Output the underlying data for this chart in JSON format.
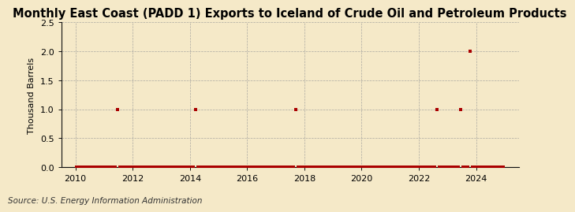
{
  "title": "Monthly East Coast (PADD 1) Exports to Iceland of Crude Oil and Petroleum Products",
  "ylabel": "Thousand Barrels",
  "source": "Source: U.S. Energy Information Administration",
  "xlim": [
    2009.5,
    2025.5
  ],
  "ylim": [
    0,
    2.5
  ],
  "yticks": [
    0.0,
    0.5,
    1.0,
    1.5,
    2.0,
    2.5
  ],
  "xticks": [
    2010,
    2012,
    2014,
    2016,
    2018,
    2020,
    2022,
    2024
  ],
  "background_color": "#f5e9c8",
  "plot_bg_color": "#f5e9c8",
  "grid_color": "#999999",
  "marker_color": "#aa0000",
  "line_color": "#111111",
  "spine_color": "#111111",
  "title_fontsize": 10.5,
  "tick_fontsize": 8,
  "ylabel_fontsize": 8,
  "source_fontsize": 7.5,
  "data_points": [
    {
      "year": 2010,
      "month": 1,
      "value": 0
    },
    {
      "year": 2010,
      "month": 2,
      "value": 0
    },
    {
      "year": 2010,
      "month": 3,
      "value": 0
    },
    {
      "year": 2010,
      "month": 4,
      "value": 0
    },
    {
      "year": 2010,
      "month": 5,
      "value": 0
    },
    {
      "year": 2010,
      "month": 6,
      "value": 0
    },
    {
      "year": 2010,
      "month": 7,
      "value": 0
    },
    {
      "year": 2010,
      "month": 8,
      "value": 0
    },
    {
      "year": 2010,
      "month": 9,
      "value": 0
    },
    {
      "year": 2010,
      "month": 10,
      "value": 0
    },
    {
      "year": 2010,
      "month": 11,
      "value": 0
    },
    {
      "year": 2010,
      "month": 12,
      "value": 0
    },
    {
      "year": 2011,
      "month": 1,
      "value": 0
    },
    {
      "year": 2011,
      "month": 2,
      "value": 0
    },
    {
      "year": 2011,
      "month": 3,
      "value": 0
    },
    {
      "year": 2011,
      "month": 4,
      "value": 0
    },
    {
      "year": 2011,
      "month": 5,
      "value": 0
    },
    {
      "year": 2011,
      "month": 6,
      "value": 1.0
    },
    {
      "year": 2011,
      "month": 7,
      "value": 0
    },
    {
      "year": 2011,
      "month": 8,
      "value": 0
    },
    {
      "year": 2011,
      "month": 9,
      "value": 0
    },
    {
      "year": 2011,
      "month": 10,
      "value": 0
    },
    {
      "year": 2011,
      "month": 11,
      "value": 0
    },
    {
      "year": 2011,
      "month": 12,
      "value": 0
    },
    {
      "year": 2012,
      "month": 1,
      "value": 0
    },
    {
      "year": 2012,
      "month": 2,
      "value": 0
    },
    {
      "year": 2012,
      "month": 3,
      "value": 0
    },
    {
      "year": 2012,
      "month": 4,
      "value": 0
    },
    {
      "year": 2012,
      "month": 5,
      "value": 0
    },
    {
      "year": 2012,
      "month": 6,
      "value": 0
    },
    {
      "year": 2012,
      "month": 7,
      "value": 0
    },
    {
      "year": 2012,
      "month": 8,
      "value": 0
    },
    {
      "year": 2012,
      "month": 9,
      "value": 0
    },
    {
      "year": 2012,
      "month": 10,
      "value": 0
    },
    {
      "year": 2012,
      "month": 11,
      "value": 0
    },
    {
      "year": 2012,
      "month": 12,
      "value": 0
    },
    {
      "year": 2013,
      "month": 1,
      "value": 0
    },
    {
      "year": 2013,
      "month": 2,
      "value": 0
    },
    {
      "year": 2013,
      "month": 3,
      "value": 0
    },
    {
      "year": 2013,
      "month": 4,
      "value": 0
    },
    {
      "year": 2013,
      "month": 5,
      "value": 0
    },
    {
      "year": 2013,
      "month": 6,
      "value": 0
    },
    {
      "year": 2013,
      "month": 7,
      "value": 0
    },
    {
      "year": 2013,
      "month": 8,
      "value": 0
    },
    {
      "year": 2013,
      "month": 9,
      "value": 0
    },
    {
      "year": 2013,
      "month": 10,
      "value": 0
    },
    {
      "year": 2013,
      "month": 11,
      "value": 0
    },
    {
      "year": 2013,
      "month": 12,
      "value": 0
    },
    {
      "year": 2014,
      "month": 1,
      "value": 0
    },
    {
      "year": 2014,
      "month": 2,
      "value": 0
    },
    {
      "year": 2014,
      "month": 3,
      "value": 1.0
    },
    {
      "year": 2014,
      "month": 4,
      "value": 0
    },
    {
      "year": 2014,
      "month": 5,
      "value": 0
    },
    {
      "year": 2014,
      "month": 6,
      "value": 0
    },
    {
      "year": 2014,
      "month": 7,
      "value": 0
    },
    {
      "year": 2014,
      "month": 8,
      "value": 0
    },
    {
      "year": 2014,
      "month": 9,
      "value": 0
    },
    {
      "year": 2014,
      "month": 10,
      "value": 0
    },
    {
      "year": 2014,
      "month": 11,
      "value": 0
    },
    {
      "year": 2014,
      "month": 12,
      "value": 0
    },
    {
      "year": 2015,
      "month": 1,
      "value": 0
    },
    {
      "year": 2015,
      "month": 2,
      "value": 0
    },
    {
      "year": 2015,
      "month": 3,
      "value": 0
    },
    {
      "year": 2015,
      "month": 4,
      "value": 0
    },
    {
      "year": 2015,
      "month": 5,
      "value": 0
    },
    {
      "year": 2015,
      "month": 6,
      "value": 0
    },
    {
      "year": 2015,
      "month": 7,
      "value": 0
    },
    {
      "year": 2015,
      "month": 8,
      "value": 0
    },
    {
      "year": 2015,
      "month": 9,
      "value": 0
    },
    {
      "year": 2015,
      "month": 10,
      "value": 0
    },
    {
      "year": 2015,
      "month": 11,
      "value": 0
    },
    {
      "year": 2015,
      "month": 12,
      "value": 0
    },
    {
      "year": 2016,
      "month": 1,
      "value": 0
    },
    {
      "year": 2016,
      "month": 2,
      "value": 0
    },
    {
      "year": 2016,
      "month": 3,
      "value": 0
    },
    {
      "year": 2016,
      "month": 4,
      "value": 0
    },
    {
      "year": 2016,
      "month": 5,
      "value": 0
    },
    {
      "year": 2016,
      "month": 6,
      "value": 0
    },
    {
      "year": 2016,
      "month": 7,
      "value": 0
    },
    {
      "year": 2016,
      "month": 8,
      "value": 0
    },
    {
      "year": 2016,
      "month": 9,
      "value": 0
    },
    {
      "year": 2016,
      "month": 10,
      "value": 0
    },
    {
      "year": 2016,
      "month": 11,
      "value": 0
    },
    {
      "year": 2016,
      "month": 12,
      "value": 0
    },
    {
      "year": 2017,
      "month": 1,
      "value": 0
    },
    {
      "year": 2017,
      "month": 2,
      "value": 0
    },
    {
      "year": 2017,
      "month": 3,
      "value": 0
    },
    {
      "year": 2017,
      "month": 4,
      "value": 0
    },
    {
      "year": 2017,
      "month": 5,
      "value": 0
    },
    {
      "year": 2017,
      "month": 6,
      "value": 0
    },
    {
      "year": 2017,
      "month": 7,
      "value": 0
    },
    {
      "year": 2017,
      "month": 8,
      "value": 0
    },
    {
      "year": 2017,
      "month": 9,
      "value": 1.0
    },
    {
      "year": 2017,
      "month": 10,
      "value": 0
    },
    {
      "year": 2017,
      "month": 11,
      "value": 0
    },
    {
      "year": 2017,
      "month": 12,
      "value": 0
    },
    {
      "year": 2018,
      "month": 1,
      "value": 0
    },
    {
      "year": 2018,
      "month": 2,
      "value": 0
    },
    {
      "year": 2018,
      "month": 3,
      "value": 0
    },
    {
      "year": 2018,
      "month": 4,
      "value": 0
    },
    {
      "year": 2018,
      "month": 5,
      "value": 0
    },
    {
      "year": 2018,
      "month": 6,
      "value": 0
    },
    {
      "year": 2018,
      "month": 7,
      "value": 0
    },
    {
      "year": 2018,
      "month": 8,
      "value": 0
    },
    {
      "year": 2018,
      "month": 9,
      "value": 0
    },
    {
      "year": 2018,
      "month": 10,
      "value": 0
    },
    {
      "year": 2018,
      "month": 11,
      "value": 0
    },
    {
      "year": 2018,
      "month": 12,
      "value": 0
    },
    {
      "year": 2019,
      "month": 1,
      "value": 0
    },
    {
      "year": 2019,
      "month": 2,
      "value": 0
    },
    {
      "year": 2019,
      "month": 3,
      "value": 0
    },
    {
      "year": 2019,
      "month": 4,
      "value": 0
    },
    {
      "year": 2019,
      "month": 5,
      "value": 0
    },
    {
      "year": 2019,
      "month": 6,
      "value": 0
    },
    {
      "year": 2019,
      "month": 7,
      "value": 0
    },
    {
      "year": 2019,
      "month": 8,
      "value": 0
    },
    {
      "year": 2019,
      "month": 9,
      "value": 0
    },
    {
      "year": 2019,
      "month": 10,
      "value": 0
    },
    {
      "year": 2019,
      "month": 11,
      "value": 0
    },
    {
      "year": 2019,
      "month": 12,
      "value": 0
    },
    {
      "year": 2020,
      "month": 1,
      "value": 0
    },
    {
      "year": 2020,
      "month": 2,
      "value": 0
    },
    {
      "year": 2020,
      "month": 3,
      "value": 0
    },
    {
      "year": 2020,
      "month": 4,
      "value": 0
    },
    {
      "year": 2020,
      "month": 5,
      "value": 0
    },
    {
      "year": 2020,
      "month": 6,
      "value": 0
    },
    {
      "year": 2020,
      "month": 7,
      "value": 0
    },
    {
      "year": 2020,
      "month": 8,
      "value": 0
    },
    {
      "year": 2020,
      "month": 9,
      "value": 0
    },
    {
      "year": 2020,
      "month": 10,
      "value": 0
    },
    {
      "year": 2020,
      "month": 11,
      "value": 0
    },
    {
      "year": 2020,
      "month": 12,
      "value": 0
    },
    {
      "year": 2021,
      "month": 1,
      "value": 0
    },
    {
      "year": 2021,
      "month": 2,
      "value": 0
    },
    {
      "year": 2021,
      "month": 3,
      "value": 0
    },
    {
      "year": 2021,
      "month": 4,
      "value": 0
    },
    {
      "year": 2021,
      "month": 5,
      "value": 0
    },
    {
      "year": 2021,
      "month": 6,
      "value": 0
    },
    {
      "year": 2021,
      "month": 7,
      "value": 0
    },
    {
      "year": 2021,
      "month": 8,
      "value": 0
    },
    {
      "year": 2021,
      "month": 9,
      "value": 0
    },
    {
      "year": 2021,
      "month": 10,
      "value": 0
    },
    {
      "year": 2021,
      "month": 11,
      "value": 0
    },
    {
      "year": 2021,
      "month": 12,
      "value": 0
    },
    {
      "year": 2022,
      "month": 1,
      "value": 0
    },
    {
      "year": 2022,
      "month": 2,
      "value": 0
    },
    {
      "year": 2022,
      "month": 3,
      "value": 0
    },
    {
      "year": 2022,
      "month": 4,
      "value": 0
    },
    {
      "year": 2022,
      "month": 5,
      "value": 0
    },
    {
      "year": 2022,
      "month": 6,
      "value": 0
    },
    {
      "year": 2022,
      "month": 7,
      "value": 0
    },
    {
      "year": 2022,
      "month": 8,
      "value": 1.0
    },
    {
      "year": 2022,
      "month": 9,
      "value": 0
    },
    {
      "year": 2022,
      "month": 10,
      "value": 0
    },
    {
      "year": 2022,
      "month": 11,
      "value": 0
    },
    {
      "year": 2022,
      "month": 12,
      "value": 0
    },
    {
      "year": 2023,
      "month": 1,
      "value": 0
    },
    {
      "year": 2023,
      "month": 2,
      "value": 0
    },
    {
      "year": 2023,
      "month": 3,
      "value": 0
    },
    {
      "year": 2023,
      "month": 4,
      "value": 0
    },
    {
      "year": 2023,
      "month": 5,
      "value": 0
    },
    {
      "year": 2023,
      "month": 6,
      "value": 1.0
    },
    {
      "year": 2023,
      "month": 7,
      "value": 0
    },
    {
      "year": 2023,
      "month": 8,
      "value": 0
    },
    {
      "year": 2023,
      "month": 9,
      "value": 0
    },
    {
      "year": 2023,
      "month": 10,
      "value": 2.0
    },
    {
      "year": 2023,
      "month": 11,
      "value": 0
    },
    {
      "year": 2023,
      "month": 12,
      "value": 0
    },
    {
      "year": 2024,
      "month": 1,
      "value": 0
    },
    {
      "year": 2024,
      "month": 2,
      "value": 0
    },
    {
      "year": 2024,
      "month": 3,
      "value": 0
    },
    {
      "year": 2024,
      "month": 4,
      "value": 0
    },
    {
      "year": 2024,
      "month": 5,
      "value": 0
    },
    {
      "year": 2024,
      "month": 6,
      "value": 0
    },
    {
      "year": 2024,
      "month": 7,
      "value": 0
    },
    {
      "year": 2024,
      "month": 8,
      "value": 0
    },
    {
      "year": 2024,
      "month": 9,
      "value": 0
    },
    {
      "year": 2024,
      "month": 10,
      "value": 0
    },
    {
      "year": 2024,
      "month": 11,
      "value": 0
    },
    {
      "year": 2024,
      "month": 12,
      "value": 0
    }
  ]
}
